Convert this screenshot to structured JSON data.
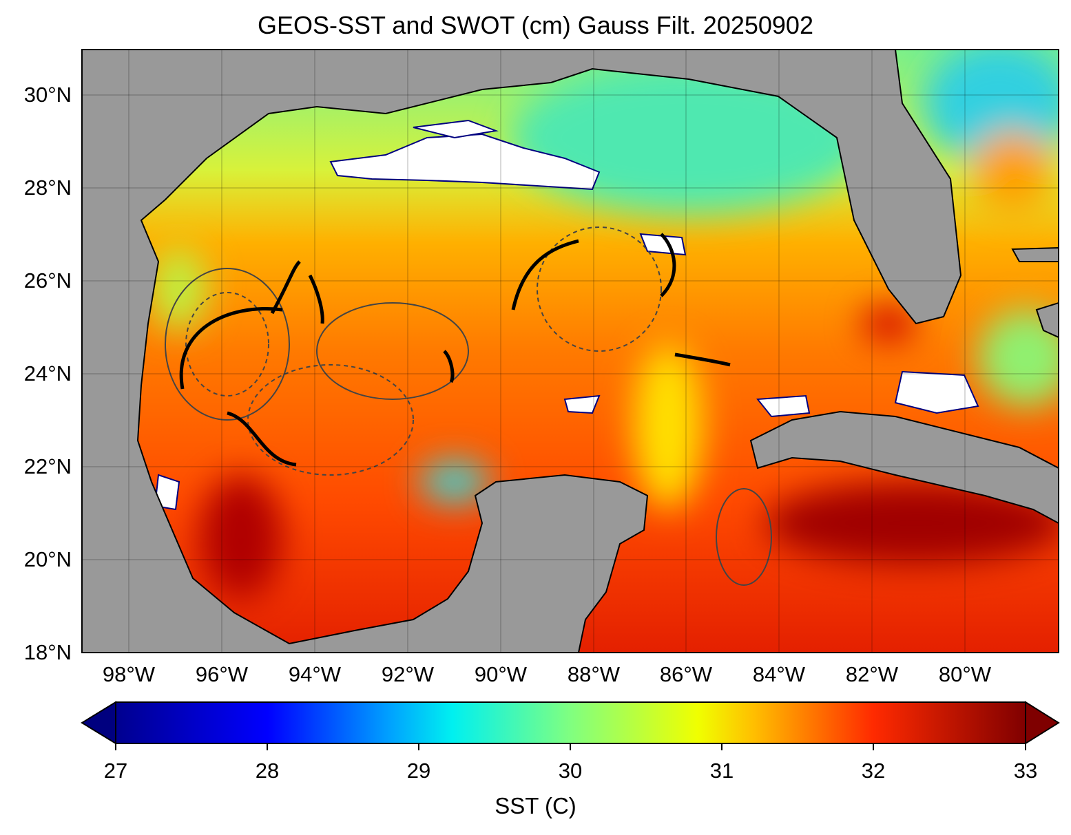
{
  "title": "GEOS-SST  and SWOT (cm) Gauss Filt. 20250902",
  "map": {
    "extent_lon": [
      -99,
      -78
    ],
    "extent_lat": [
      18,
      31
    ],
    "lat_ticks": [
      "30°N",
      "28°N",
      "26°N",
      "24°N",
      "22°N",
      "20°N",
      "18°N"
    ],
    "lon_ticks": [
      "98°W",
      "96°W",
      "94°W",
      "92°W",
      "90°W",
      "88°W",
      "86°W",
      "84°W",
      "82°W",
      "80°W"
    ],
    "land_color": "#999999",
    "cloud_color": "#ffffff"
  },
  "colorbar": {
    "ticks": [
      "27",
      "28",
      "29",
      "30",
      "31",
      "32",
      "33"
    ],
    "label": "SST (C)",
    "range": [
      27,
      33
    ],
    "extend": "both",
    "colormap": "jet"
  }
}
